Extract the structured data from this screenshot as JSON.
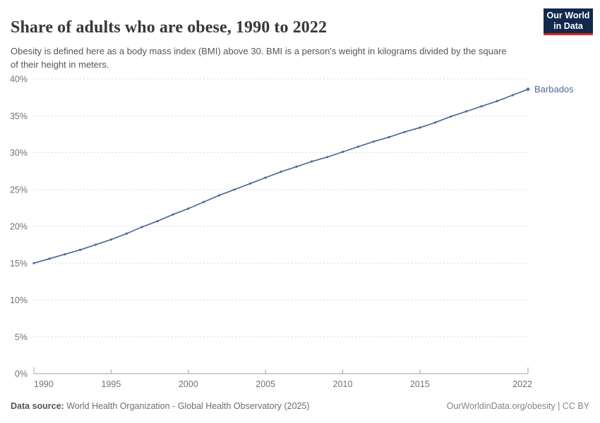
{
  "header": {
    "title": "Share of adults who are obese, 1990 to 2022",
    "subtitle": "Obesity is defined here as a body mass index (BMI) above 30. BMI is a person's weight in kilograms divided by the square of their height in meters."
  },
  "logo": {
    "line1": "Our World",
    "line2": "in Data",
    "bg_color": "#12294d",
    "bar_color": "#d42a20"
  },
  "chart_data": {
    "type": "line",
    "title": "Share of adults who are obese, 1990 to 2022",
    "xlabel": "",
    "ylabel": "",
    "xlim": [
      1990,
      2022
    ],
    "ylim": [
      0,
      40
    ],
    "yticks": [
      0,
      5,
      10,
      15,
      20,
      25,
      30,
      35,
      40
    ],
    "ytick_suffix": "%",
    "xticks": [
      1990,
      1995,
      2000,
      2005,
      2010,
      2015,
      2022
    ],
    "grid": "horizontal-dashed",
    "legend_position": "end-of-line-label",
    "series": [
      {
        "name": "Barbados",
        "color": "#4c6a9c",
        "x": [
          1990,
          1991,
          1992,
          1993,
          1994,
          1995,
          1996,
          1997,
          1998,
          1999,
          2000,
          2001,
          2002,
          2003,
          2004,
          2005,
          2006,
          2007,
          2008,
          2009,
          2010,
          2011,
          2012,
          2013,
          2014,
          2015,
          2016,
          2017,
          2018,
          2019,
          2020,
          2021,
          2022
        ],
        "values": [
          15.0,
          15.6,
          16.2,
          16.8,
          17.5,
          18.2,
          19.0,
          19.9,
          20.7,
          21.6,
          22.4,
          23.3,
          24.2,
          25.0,
          25.8,
          26.6,
          27.4,
          28.1,
          28.8,
          29.4,
          30.1,
          30.8,
          31.5,
          32.1,
          32.8,
          33.4,
          34.1,
          34.9,
          35.6,
          36.3,
          37.0,
          37.8,
          38.6
        ]
      }
    ]
  },
  "footer": {
    "source_label": "Data source:",
    "source_value": "World Health Organization - Global Health Observatory (2025)",
    "credit": "OurWorldinData.org/obesity | CC BY"
  }
}
